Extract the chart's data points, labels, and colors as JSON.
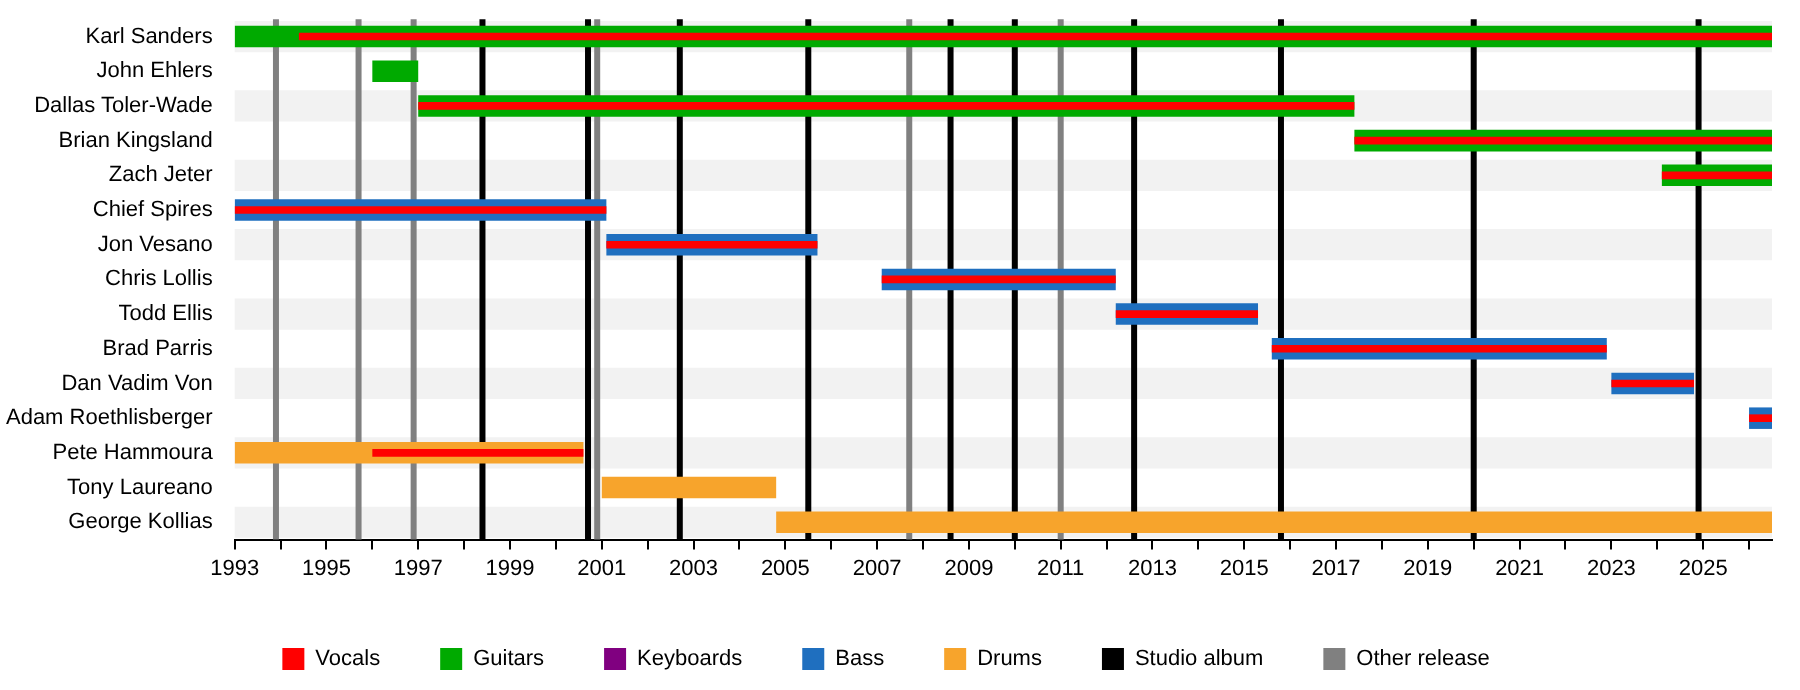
{
  "chart_data": {
    "type": "bar",
    "orientation": "horizontal",
    "legend": "bottom",
    "grid": false,
    "categories": [
      "Karl Sanders",
      "John Ehlers",
      "Dallas Toler-Wade",
      "Brian Kingsland",
      "Zach Jeter",
      "Chief Spires",
      "Jon Vesano",
      "Chris Lollis",
      "Todd Ellis",
      "Brad Parris",
      "Dan Vadim Von",
      "Adam Roethlisberger",
      "Pete Hammoura",
      "Tony Laureano",
      "George Kollias"
    ],
    "xlim": [
      1993,
      2026.5
    ],
    "xticks": [
      1993,
      {
        "value": 1994,
        "label": null
      },
      1995,
      {
        "value": 1996,
        "label": null
      },
      1997,
      {
        "value": 1998,
        "label": null
      },
      1999,
      {
        "value": 2000,
        "label": null
      },
      2001,
      {
        "value": 2002,
        "label": null
      },
      2003,
      {
        "value": 2004,
        "label": null
      },
      2005,
      {
        "value": 2006,
        "label": null
      },
      2007,
      {
        "value": 2008,
        "label": null
      },
      2009,
      {
        "value": 2010,
        "label": null
      },
      2011,
      {
        "value": 2012,
        "label": null
      },
      2013,
      {
        "value": 2014,
        "label": null
      },
      2015,
      {
        "value": 2016,
        "label": null
      },
      2017,
      {
        "value": 2018,
        "label": null
      },
      2019,
      {
        "value": 2020,
        "label": null
      },
      2021,
      {
        "value": 2022,
        "label": null
      },
      2023,
      {
        "value": 2024,
        "label": null
      },
      2025,
      {
        "value": 2026,
        "label": null
      }
    ],
    "series": [
      {
        "name": "Vocals",
        "color": "#ff0000",
        "base": [
          1994.4,
          null,
          1997.0,
          2017.4,
          2024.1,
          1993,
          2001.1,
          2007.1,
          2012.2,
          2015.6,
          2023.0,
          2026.0,
          1996.0,
          null,
          null
        ],
        "values": [
          32.1,
          null,
          20.4,
          9.1,
          2.4,
          8.1,
          4.6,
          5.1,
          3.1,
          7.3,
          1.8,
          0.5,
          4.6,
          null,
          null
        ]
      },
      {
        "name": "Guitars",
        "color": "#00aa00",
        "base": [
          1993,
          1996.0,
          1997.0,
          2017.4,
          2024.1,
          null,
          null,
          null,
          null,
          null,
          null,
          null,
          null,
          null,
          null
        ],
        "values": [
          33.5,
          1.0,
          20.4,
          9.1,
          2.4,
          null,
          null,
          null,
          null,
          null,
          null,
          null,
          null,
          null,
          null
        ]
      },
      {
        "name": "Keyboards",
        "color": "#800080",
        "values": [
          null,
          null,
          null,
          null,
          null,
          null,
          null,
          null,
          null,
          null,
          null,
          null,
          null,
          null,
          null
        ]
      },
      {
        "name": "Bass",
        "color": "#1f6fbf",
        "base": [
          null,
          null,
          null,
          null,
          null,
          1993,
          2001.1,
          2007.1,
          2012.2,
          2015.6,
          2023.0,
          2026.0,
          null,
          null,
          null
        ],
        "values": [
          null,
          null,
          null,
          null,
          null,
          8.1,
          4.6,
          5.1,
          3.1,
          7.3,
          1.8,
          0.5,
          null,
          null,
          null
        ]
      },
      {
        "name": "Drums",
        "color": "#f7a42c",
        "base": [
          null,
          null,
          null,
          null,
          null,
          null,
          null,
          null,
          null,
          null,
          null,
          null,
          1993,
          2001.0,
          2004.8
        ],
        "values": [
          null,
          null,
          null,
          null,
          null,
          null,
          null,
          null,
          null,
          null,
          null,
          null,
          7.6,
          3.8,
          21.7
        ]
      }
    ],
    "ref_lines": [
      {
        "axis": "x",
        "value": 1998.4,
        "label": "Studio album",
        "color": "#000000"
      },
      {
        "axis": "x",
        "value": 2000.7,
        "color": "#000000"
      },
      {
        "axis": "x",
        "value": 2002.7,
        "color": "#000000"
      },
      {
        "axis": "x",
        "value": 2005.5,
        "color": "#000000"
      },
      {
        "axis": "x",
        "value": 2008.6,
        "color": "#000000"
      },
      {
        "axis": "x",
        "value": 2010.0,
        "color": "#000000"
      },
      {
        "axis": "x",
        "value": 2012.6,
        "color": "#000000"
      },
      {
        "axis": "x",
        "value": 2015.8,
        "color": "#000000"
      },
      {
        "axis": "x",
        "value": 2020.0,
        "color": "#000000"
      },
      {
        "axis": "x",
        "value": 2024.9,
        "color": "#000000"
      },
      {
        "axis": "x",
        "value": 1993.9,
        "label": "Other release",
        "color": "#808080"
      },
      {
        "axis": "x",
        "value": 1995.7,
        "color": "#808080"
      },
      {
        "axis": "x",
        "value": 1996.9,
        "color": "#808080"
      },
      {
        "axis": "x",
        "value": 2000.9,
        "color": "#808080"
      },
      {
        "axis": "x",
        "value": 2007.7,
        "color": "#808080"
      },
      {
        "axis": "x",
        "value": 2011.0,
        "color": "#808080"
      }
    ]
  }
}
